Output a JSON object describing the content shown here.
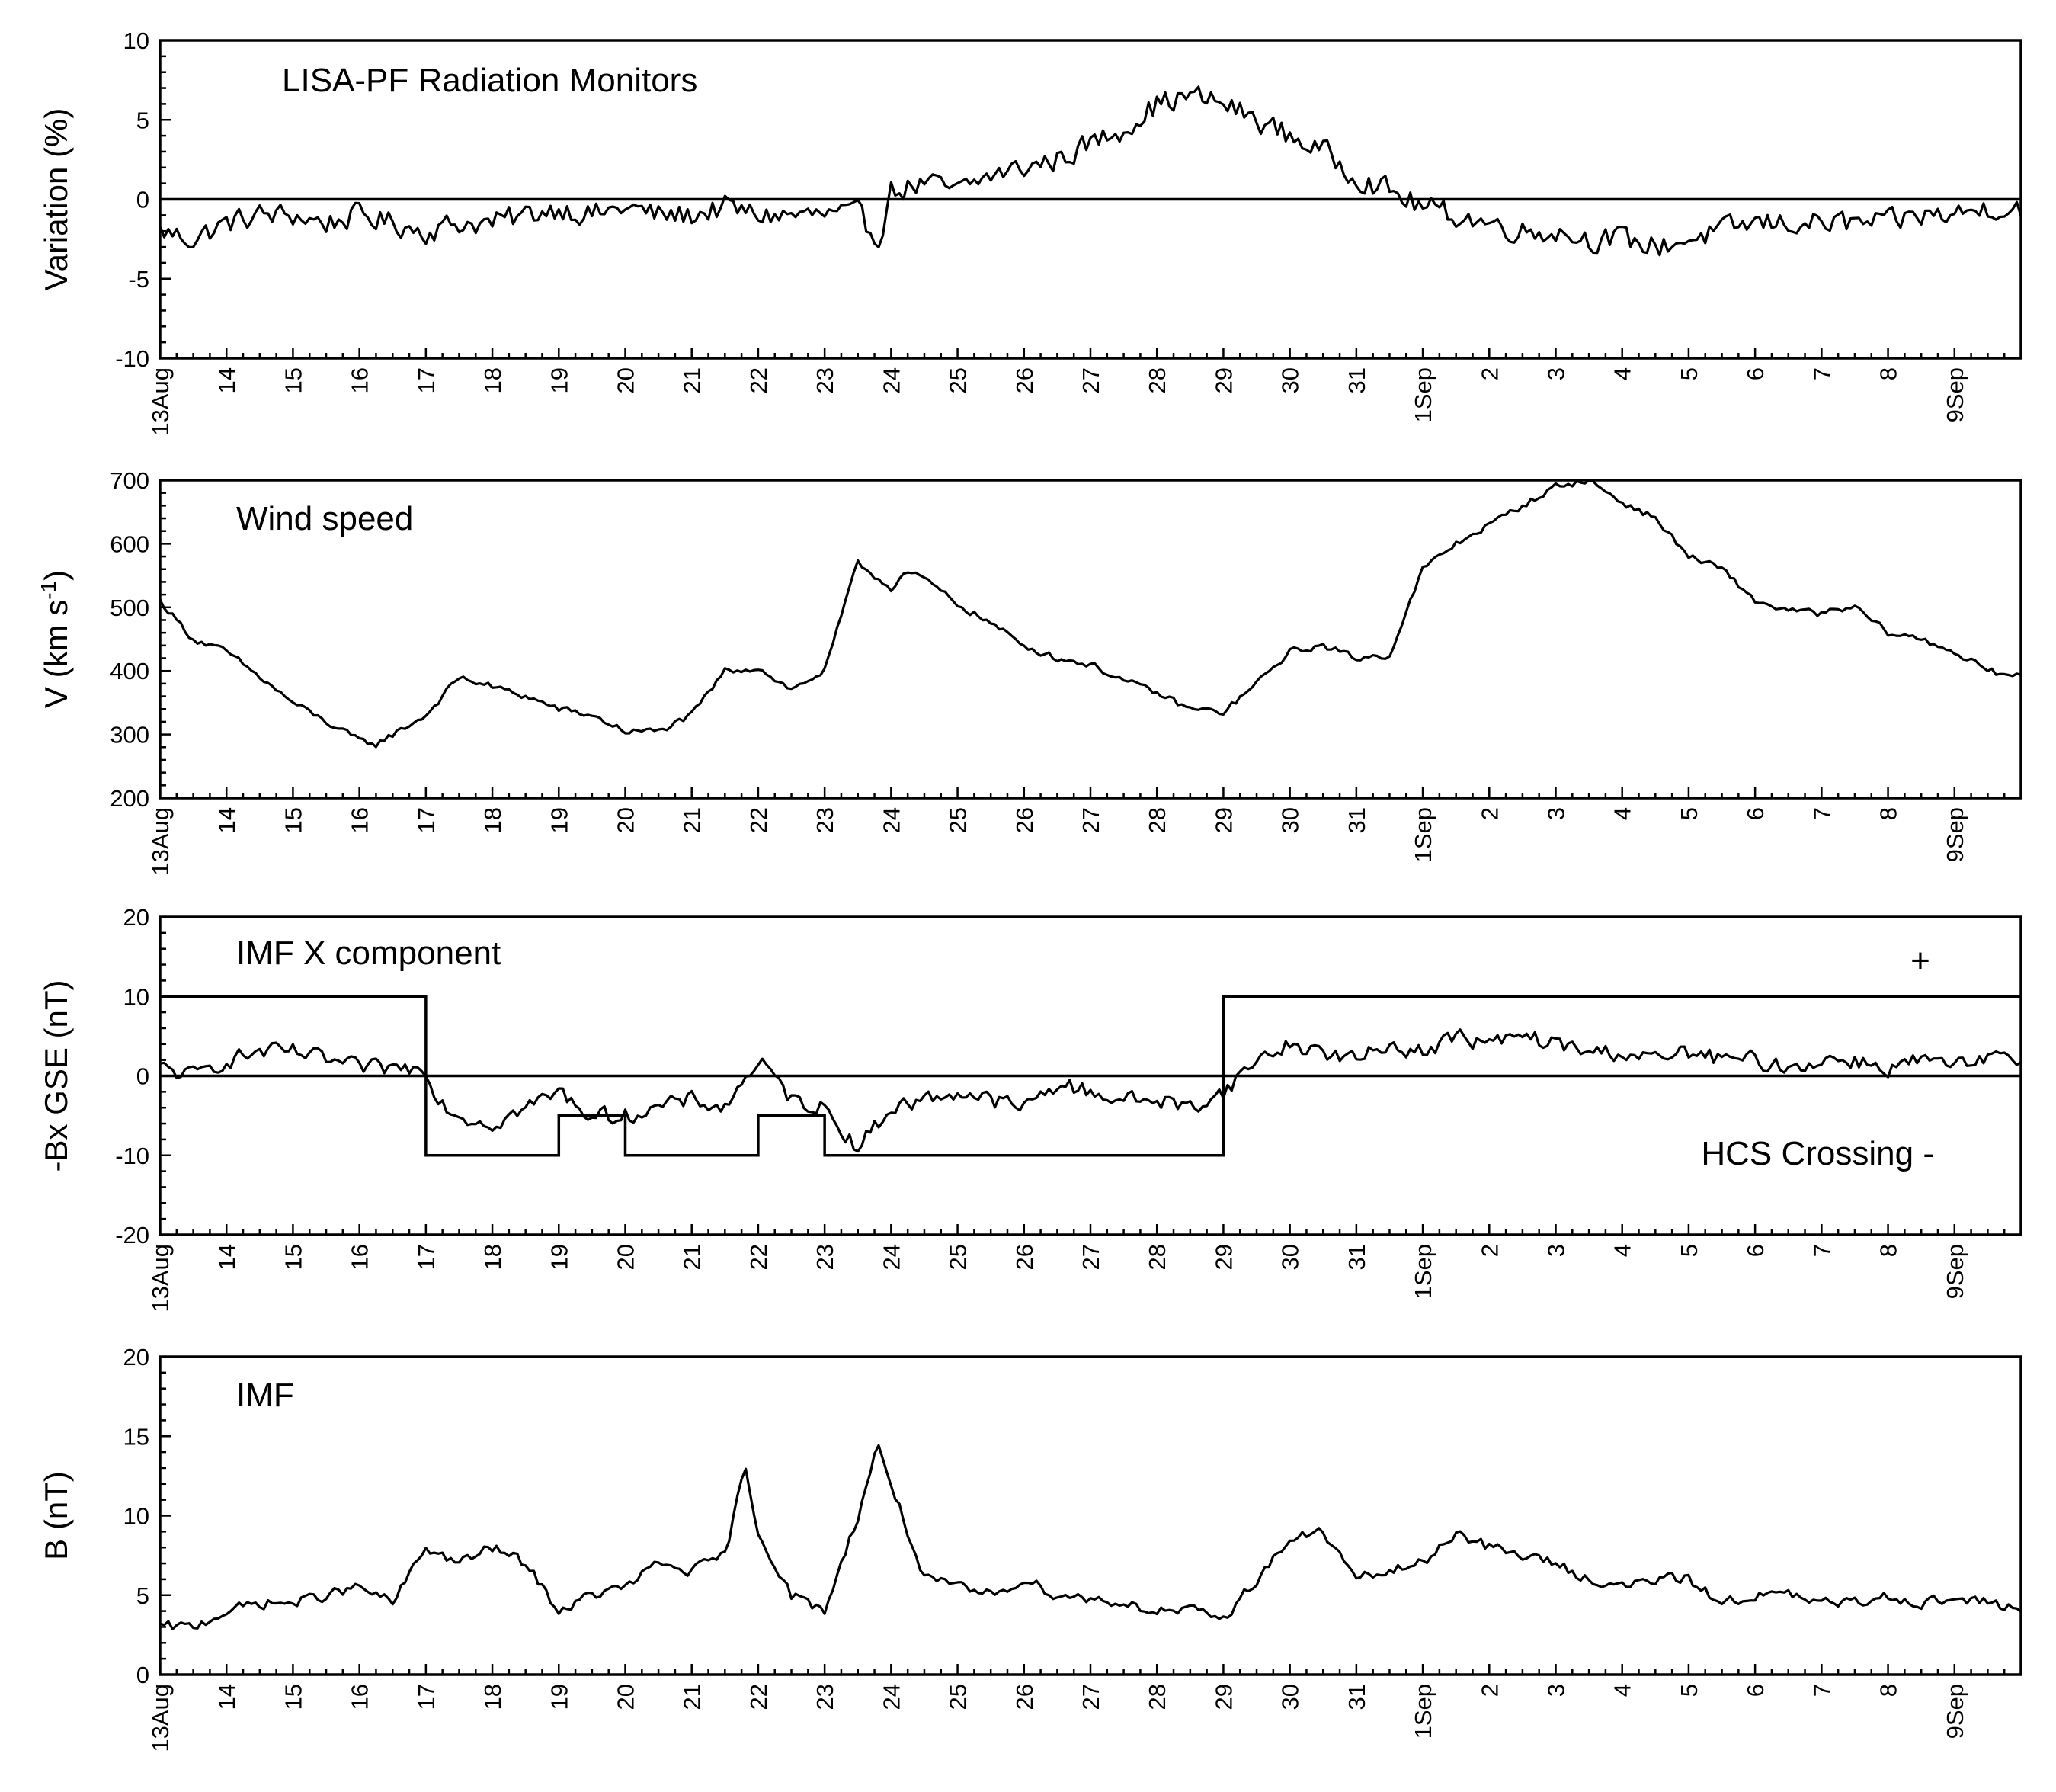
{
  "chart_data": [
    {
      "type": "line",
      "annotation": "LISA-PF Radiation Monitors",
      "ylabel": "Variation (%)",
      "ylim": [
        -10,
        10
      ],
      "yticks": [
        "-10",
        "-5",
        "0",
        "5",
        "10"
      ],
      "zero_line": 0,
      "series": [
        {
          "x": [
            0,
            0.5,
            1,
            1.5,
            2,
            2.5,
            3,
            3.5,
            4,
            4.5,
            5,
            5.5,
            6,
            6.5,
            7,
            7.5,
            8,
            8.5,
            9,
            9.5,
            10,
            10.5,
            10.8,
            11,
            11.5,
            12,
            12.5,
            13,
            13.5,
            14,
            14.5,
            15,
            15.5,
            16,
            16.5,
            17,
            17.5,
            18,
            18.5,
            19,
            19.5,
            20,
            20.5,
            21,
            21.5,
            22,
            22.5,
            23,
            23.5,
            24,
            24.5,
            25,
            25.5,
            26,
            26.5,
            27,
            27.5,
            28
          ],
          "values": [
            -2,
            -2.5,
            -1.5,
            -1,
            -1,
            -1.5,
            -1,
            -1.5,
            -2,
            -1.5,
            -1.5,
            -1,
            -0.5,
            -1,
            -0.5,
            -1,
            -1,
            -0.5,
            -1,
            -1,
            -1,
            -1,
            -2.5,
            0.5,
            1,
            0.5,
            1.5,
            2,
            2.5,
            3.5,
            4.5,
            6,
            6.5,
            6,
            5,
            4,
            3,
            1.5,
            0.5,
            -0.5,
            -1,
            -1.5,
            -2,
            -2,
            -2.5,
            -2.5,
            -3,
            -2.5,
            -2,
            -1.5,
            -1.5,
            -1.5,
            -1.5,
            -1.5,
            -1,
            -1,
            -0.5,
            -0.5
          ]
        }
      ]
    },
    {
      "type": "line",
      "annotation": "Wind speed",
      "ylabel": "V (km s-1)",
      "ylim": [
        200,
        700
      ],
      "yticks": [
        "200",
        "300",
        "400",
        "500",
        "600",
        "700"
      ],
      "series": [
        {
          "x": [
            0,
            0.5,
            1,
            1.5,
            2,
            2.5,
            3,
            3.25,
            3.5,
            4,
            4.5,
            5,
            5.5,
            6,
            6.5,
            7,
            7.5,
            8,
            8.5,
            9,
            9.5,
            10,
            10.5,
            11,
            11.2,
            11.5,
            12,
            12.5,
            13,
            13.5,
            14,
            14.5,
            15,
            15.5,
            16,
            16.5,
            17,
            17.5,
            18,
            18.5,
            19,
            19.5,
            20,
            20.5,
            21,
            21.5,
            22,
            22.5,
            23,
            23.5,
            24,
            24.5,
            25,
            25.5,
            26,
            26.5,
            27,
            27.5,
            28
          ],
          "values": [
            510,
            450,
            430,
            390,
            350,
            320,
            290,
            285,
            300,
            330,
            390,
            375,
            360,
            340,
            330,
            305,
            305,
            330,
            400,
            405,
            370,
            400,
            570,
            530,
            555,
            545,
            505,
            475,
            440,
            420,
            410,
            385,
            365,
            340,
            335,
            380,
            430,
            440,
            420,
            425,
            560,
            600,
            630,
            660,
            690,
            700,
            665,
            640,
            580,
            560,
            510,
            495,
            490,
            500,
            460,
            450,
            430,
            400,
            390
          ]
        }
      ]
    },
    {
      "type": "line",
      "annotation": "IMF X component",
      "ylabel": "-Bx GSE (nT)",
      "ylim": [
        -20,
        20
      ],
      "yticks": [
        "-20",
        "-10",
        "0",
        "10",
        "20"
      ],
      "zero_line": 0,
      "markers": {
        "plus": "+",
        "minus": "HCS Crossing -"
      },
      "polarity": {
        "x": [
          0,
          4,
          4,
          6,
          6,
          7,
          7,
          9,
          9,
          10,
          10,
          16,
          16,
          28
        ],
        "values": [
          10,
          10,
          -10,
          -10,
          -5,
          -5,
          -10,
          -10,
          -5,
          -5,
          -10,
          -10,
          10,
          10
        ]
      },
      "series": [
        {
          "x": [
            0,
            0.5,
            1,
            1.5,
            2,
            2.5,
            3,
            3.5,
            4,
            4.2,
            4.5,
            5,
            5.5,
            6,
            6.5,
            7,
            7.5,
            8,
            8.5,
            9,
            9.5,
            10,
            10.5,
            11,
            11.5,
            12,
            12.5,
            13,
            13.5,
            14,
            14.5,
            15,
            15.5,
            16,
            16.5,
            17,
            17.5,
            18,
            18.5,
            19,
            19.5,
            20,
            20.5,
            21,
            21.5,
            22,
            22.5,
            23,
            23.5,
            24,
            24.5,
            25,
            25.5,
            26,
            26.5,
            27,
            27.5,
            28
          ],
          "values": [
            1,
            0,
            2,
            3,
            3,
            2,
            1,
            1,
            1,
            -3,
            -5,
            -6,
            -4,
            -2,
            -5,
            -5,
            -4,
            -3,
            -4,
            2,
            -3,
            -4,
            -9,
            -4,
            -3,
            -2,
            -3,
            -4,
            -1,
            -2,
            -3,
            -3,
            -4,
            -2,
            2,
            4,
            3,
            2,
            4,
            3,
            5,
            4,
            5,
            4,
            3,
            3,
            2,
            3,
            2,
            2,
            1,
            2,
            2,
            1,
            2,
            1,
            2,
            2
          ]
        }
      ]
    },
    {
      "type": "line",
      "annotation": "IMF",
      "ylabel": "B (nT)",
      "ylim": [
        0,
        20
      ],
      "yticks": [
        "0",
        "5",
        "10",
        "15",
        "20"
      ],
      "series": [
        {
          "x": [
            0,
            0.5,
            1,
            1.5,
            2,
            2.5,
            3,
            3.5,
            4,
            4.5,
            5,
            5.5,
            6,
            6.5,
            7,
            7.5,
            8,
            8.5,
            8.8,
            9,
            9.5,
            10,
            10.5,
            10.8,
            11,
            11.5,
            12,
            12.5,
            13,
            13.5,
            14,
            14.5,
            15,
            15.5,
            16,
            16.5,
            17,
            17.5,
            18,
            18.5,
            19,
            19.5,
            20,
            20.5,
            21,
            21.5,
            22,
            22.5,
            23,
            23.5,
            24,
            24.5,
            25,
            25.5,
            26,
            26.5,
            27,
            27.5,
            28
          ],
          "values": [
            3,
            3,
            4,
            4.5,
            4.5,
            5,
            5.5,
            4.5,
            8,
            7,
            8,
            7,
            4,
            5,
            5.5,
            7,
            6.5,
            7.5,
            13,
            9,
            5,
            4,
            10,
            14.5,
            12,
            6,
            5.5,
            5,
            6,
            5,
            4.8,
            4.5,
            4,
            4,
            3.5,
            6,
            8.5,
            9,
            6,
            6.5,
            7,
            9,
            8,
            7.5,
            7,
            6,
            5.5,
            6,
            6,
            4.5,
            5,
            5,
            4.5,
            4.5,
            5,
            4.5,
            4.8,
            4.5,
            4.2
          ]
        }
      ]
    }
  ],
  "shared_x": {
    "tick_labels": [
      "13Aug",
      "14",
      "15",
      "16",
      "17",
      "18",
      "19",
      "20",
      "21",
      "22",
      "23",
      "24",
      "25",
      "26",
      "27",
      "28",
      "29",
      "30",
      "31",
      "1Sep",
      "2",
      "3",
      "4",
      "5",
      "6",
      "7",
      "8",
      "9Sep"
    ],
    "xlim": [
      0,
      28
    ]
  }
}
